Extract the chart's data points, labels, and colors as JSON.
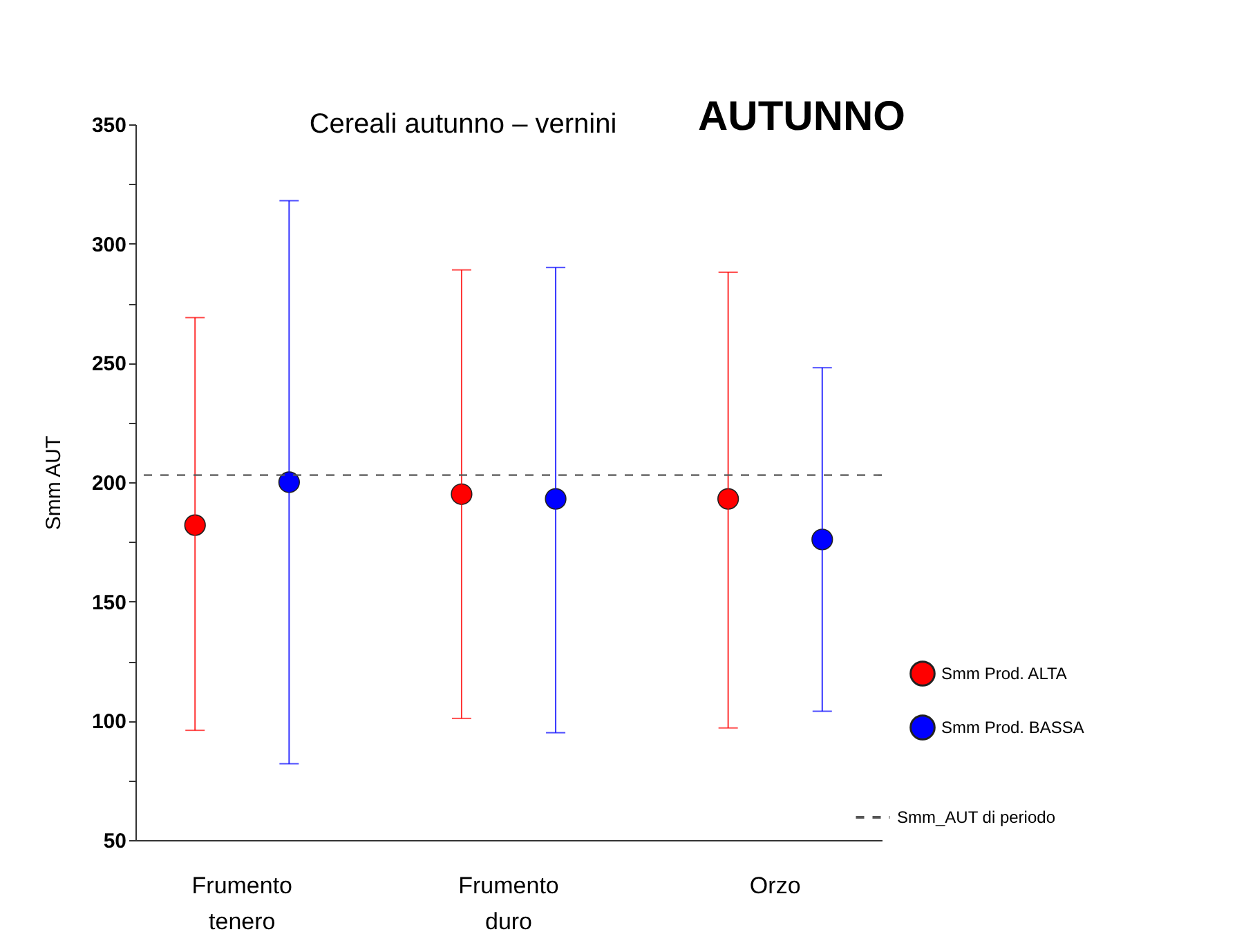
{
  "chart_data": {
    "type": "scatter",
    "title": "Cereali autunno – vernini",
    "subtitle": "AUTUNNO",
    "ylabel": "Smm AUT",
    "categories": [
      "Frumento tenero",
      "Frumento duro",
      "Orzo"
    ],
    "series": [
      {
        "name": "Smm Prod. ALTA",
        "color": "#ff0000",
        "values": [
          182,
          195,
          193
        ],
        "errors": [
          [
            96,
            269
          ],
          [
            101,
            289
          ],
          [
            97,
            288
          ]
        ]
      },
      {
        "name": "Smm Prod. BASSA",
        "color": "#0000ff",
        "values": [
          200,
          193,
          176
        ],
        "errors": [
          [
            82,
            318
          ],
          [
            95,
            290
          ],
          [
            104,
            248
          ]
        ]
      }
    ],
    "ylim": [
      50,
      350
    ],
    "yticks": [
      50,
      {
        "value": 75,
        "label": null
      },
      100,
      {
        "value": 125,
        "label": null
      },
      150,
      {
        "value": 175,
        "label": null
      },
      200,
      {
        "value": 225,
        "label": null
      },
      250,
      {
        "value": 275,
        "label": null
      },
      300,
      {
        "value": 325,
        "label": null
      },
      350
    ],
    "ref_lines": [
      {
        "axis": "y",
        "value": 203,
        "label": "Smm_AUT di periodo",
        "color": "#555555",
        "line_style": "dashed"
      }
    ],
    "marker": "circle",
    "grid": false,
    "legend": "bottom right"
  }
}
